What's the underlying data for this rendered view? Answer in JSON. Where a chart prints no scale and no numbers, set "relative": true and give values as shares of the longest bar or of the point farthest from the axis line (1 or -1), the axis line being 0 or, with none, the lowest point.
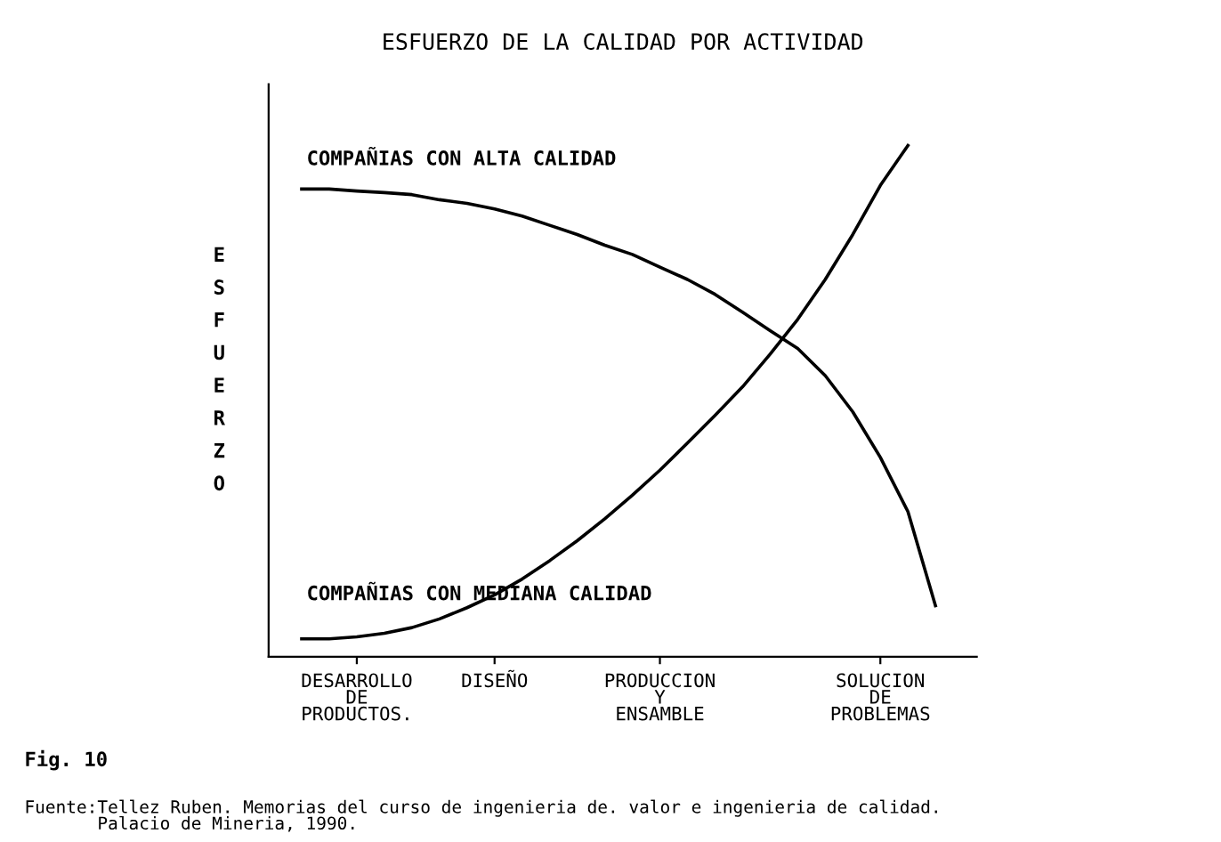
{
  "chart_data": {
    "type": "line",
    "title": "ESFUERZO DE LA CALIDAD POR ACTIVIDAD",
    "ylabel": "E\nS\nF\nU\nE\nR\nZ\nO",
    "relative": true,
    "grid": false,
    "legend": false,
    "marker": "none",
    "line_style": "solid",
    "categories": [
      null,
      null,
      "DESARROLLO\nDE\nPRODUCTOS.",
      null,
      null,
      null,
      null,
      "DISEÑO",
      null,
      null,
      null,
      null,
      null,
      "PRODUCCION\nY\nENSAMBLE",
      null,
      null,
      null,
      null,
      null,
      null,
      null,
      "SOLUCION\nDE\nPROBLEMAS",
      null,
      null,
      null
    ],
    "series": [
      {
        "name": "COMPAÑIAS CON ALTA CALIDAD",
        "color": "#000000",
        "values": [
          0.915,
          0.915,
          0.911,
          0.908,
          0.904,
          0.894,
          0.887,
          0.876,
          0.862,
          0.844,
          0.826,
          0.805,
          0.787,
          0.762,
          0.738,
          0.709,
          0.674,
          0.638,
          0.603,
          0.55,
          0.479,
          0.39,
          0.284,
          0.1,
          null
        ]
      },
      {
        "name": "COMPAÑIAS CON MEDIANA CALIDAD",
        "color": "#000000",
        "values": [
          0.035,
          0.035,
          0.039,
          0.046,
          0.057,
          0.074,
          0.096,
          0.121,
          0.152,
          0.188,
          0.227,
          0.27,
          0.316,
          0.365,
          0.418,
          0.472,
          0.528,
          0.592,
          0.66,
          0.738,
          0.826,
          0.922,
          1.0,
          null,
          null
        ]
      }
    ],
    "annotations": [
      "Fig. 10",
      "Fuente:Tellez Ruben. Memorias del curso de ingenieria de. valor e ingenieria de calidad.\n       Palacio de Mineria, 1990."
    ]
  }
}
